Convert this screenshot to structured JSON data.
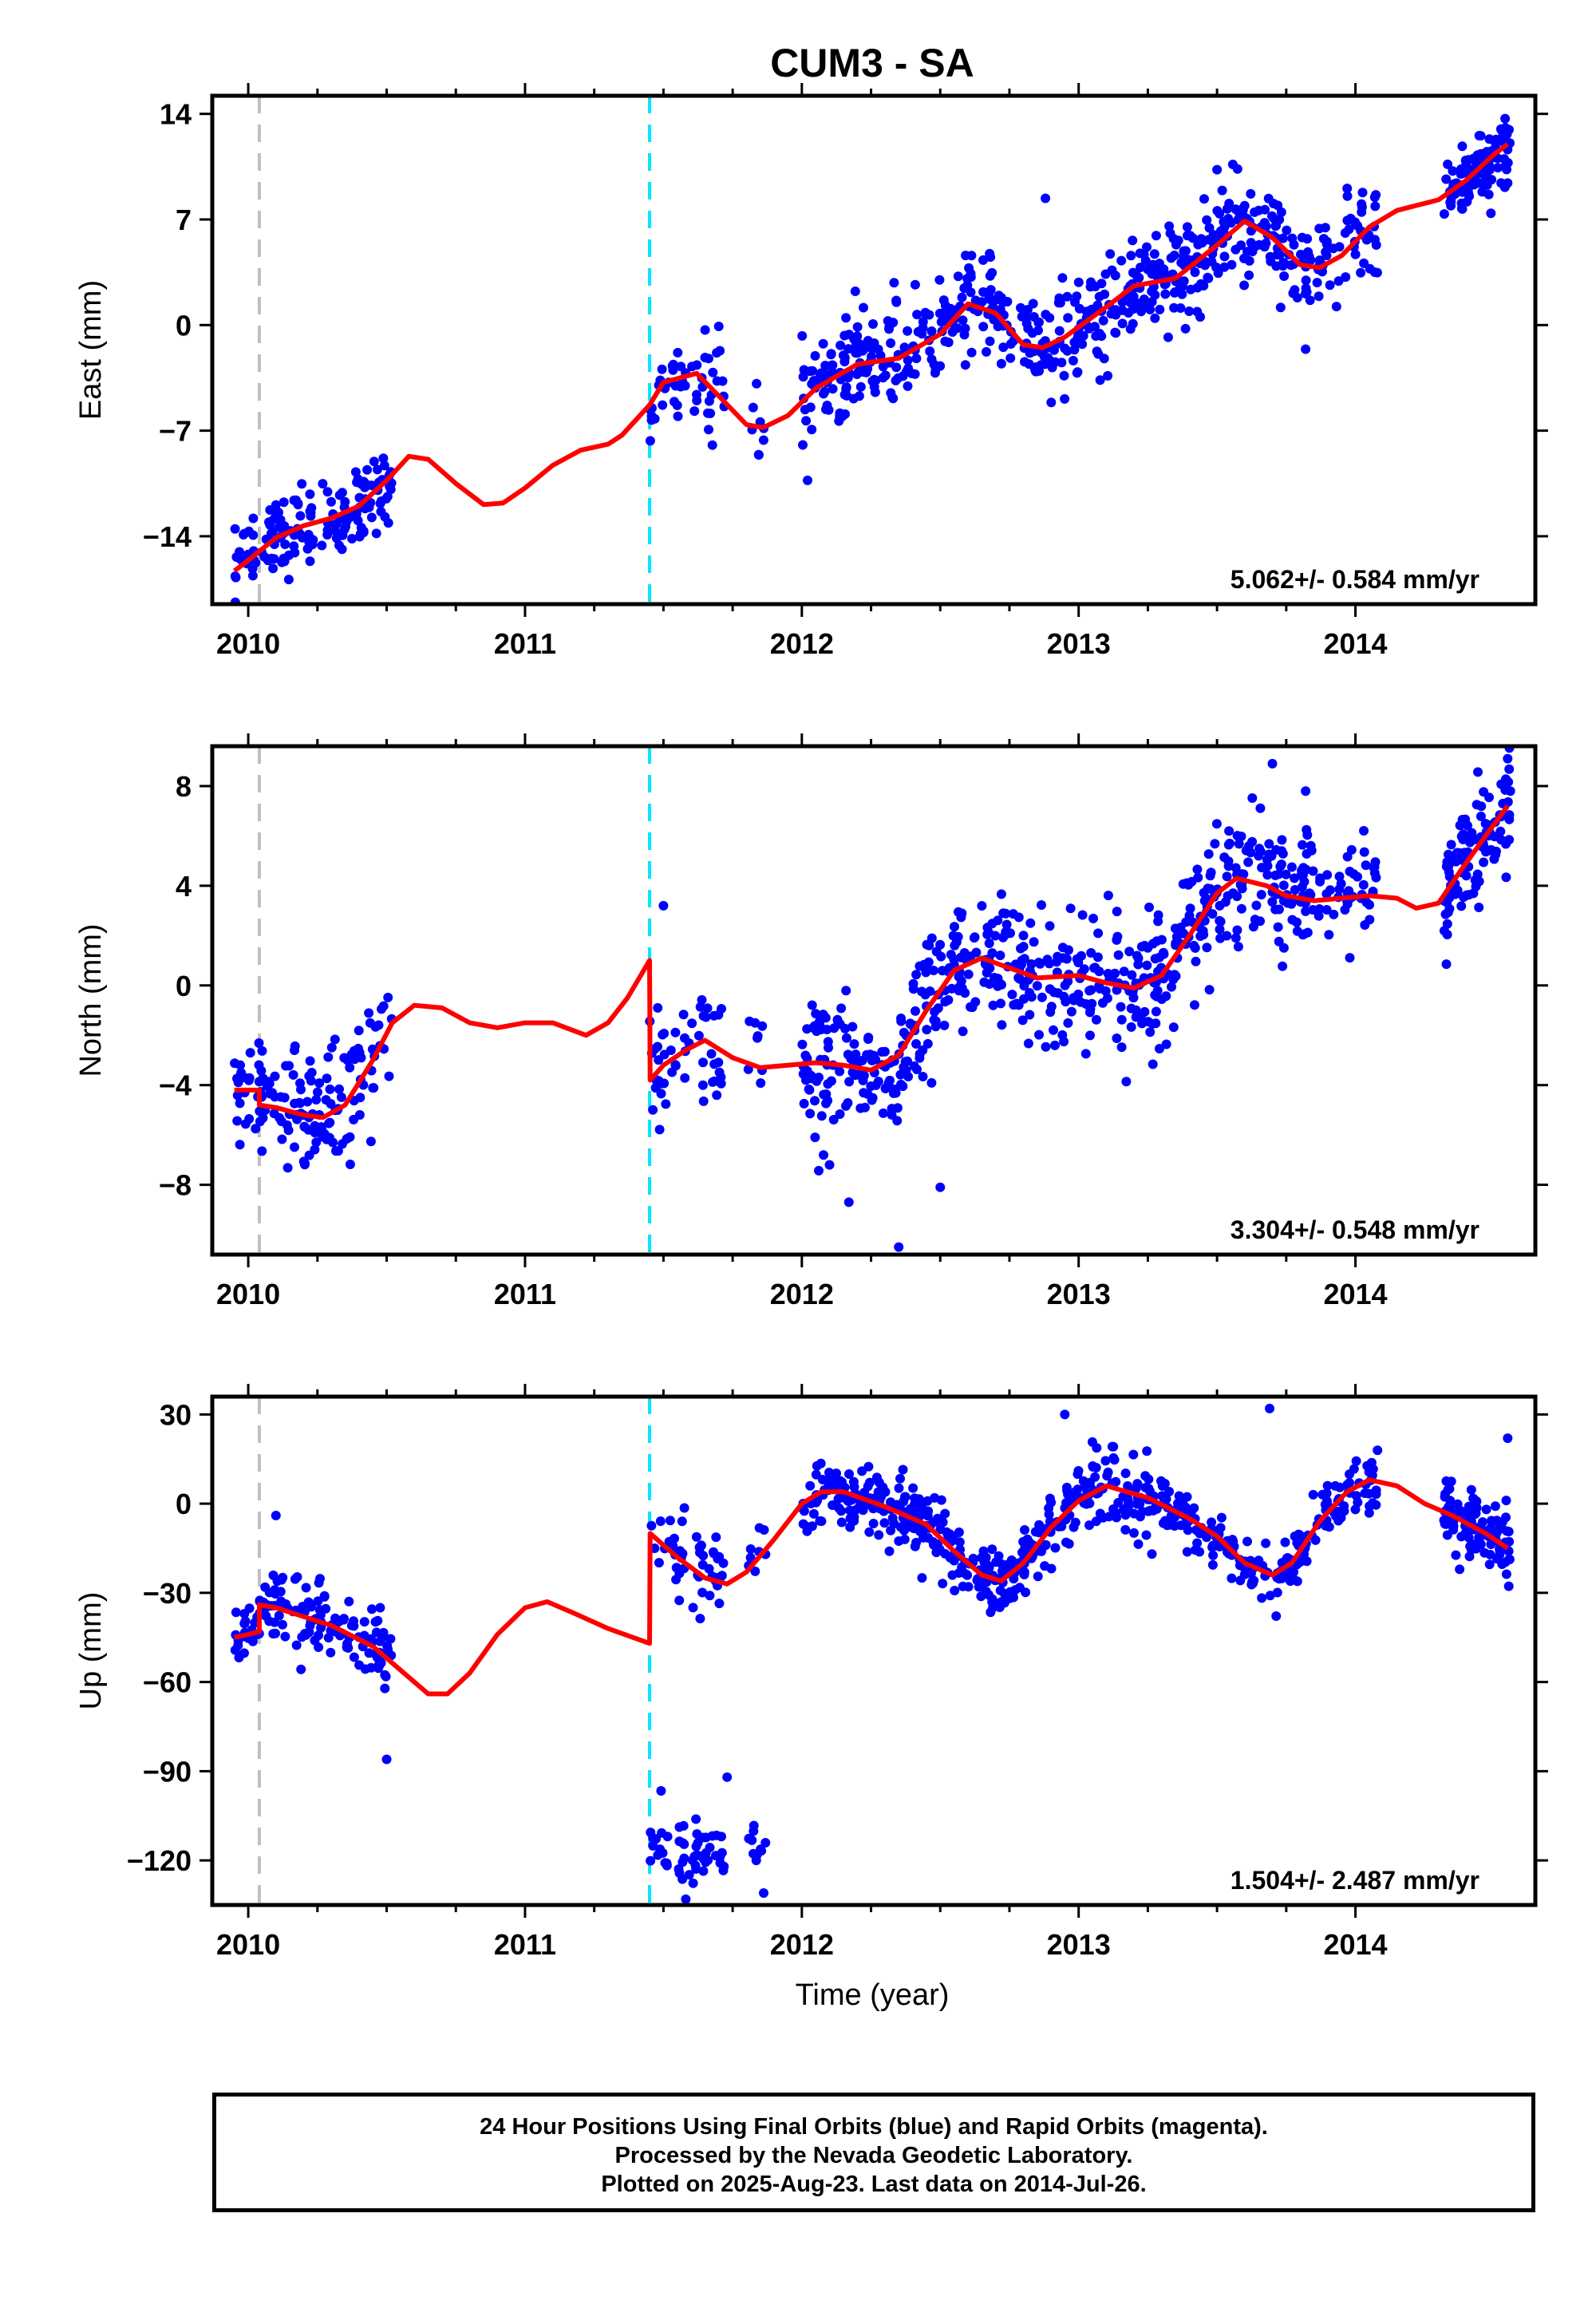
{
  "title": "CUM3 - SA",
  "xlabel": "Time (year)",
  "footer": {
    "line1": "24 Hour Positions Using Final Orbits (blue) and Rapid Orbits (magenta).",
    "line2": "Processed by the Nevada Geodetic Laboratory.",
    "line3": "Plotted on 2025-Aug-23. Last data on 2014-Jul-26."
  },
  "colors": {
    "points": "#0000ff",
    "fit": "#ff0000",
    "event1": "#c0c0c0",
    "event2": "#00e5ff"
  },
  "chart_data": [
    {
      "type": "scatter",
      "ylabel": "East (mm)",
      "xlim": [
        2009.87,
        2014.65
      ],
      "ylim": [
        -18.5,
        15.2
      ],
      "xticks": [
        2010,
        2011,
        2012,
        2013,
        2014
      ],
      "yticks": [
        14,
        7,
        0,
        -7,
        -14
      ],
      "rate": "5.062+/- 0.584 mm/yr",
      "events": [
        2010.04,
        2011.45
      ],
      "fit": [
        [
          2009.95,
          -16.3
        ],
        [
          2010.0,
          -15.6
        ],
        [
          2010.1,
          -14.1
        ],
        [
          2010.2,
          -13.3
        ],
        [
          2010.3,
          -12.8
        ],
        [
          2010.4,
          -12.0
        ],
        [
          2010.5,
          -10.3
        ],
        [
          2010.58,
          -8.7
        ],
        [
          2010.65,
          -8.9
        ],
        [
          2010.75,
          -10.5
        ],
        [
          2010.85,
          -11.9
        ],
        [
          2010.92,
          -11.8
        ],
        [
          2011.0,
          -10.8
        ],
        [
          2011.1,
          -9.3
        ],
        [
          2011.2,
          -8.3
        ],
        [
          2011.3,
          -7.9
        ],
        [
          2011.35,
          -7.3
        ],
        [
          2011.45,
          -5.3
        ],
        [
          2011.5,
          -3.8
        ],
        [
          2011.62,
          -3.2
        ],
        [
          2011.7,
          -4.7
        ],
        [
          2011.8,
          -6.6
        ],
        [
          2011.86,
          -6.8
        ],
        [
          2011.95,
          -6.0
        ],
        [
          2012.05,
          -4.2
        ],
        [
          2012.2,
          -2.6
        ],
        [
          2012.35,
          -2.2
        ],
        [
          2012.5,
          -0.6
        ],
        [
          2012.6,
          1.4
        ],
        [
          2012.7,
          0.8
        ],
        [
          2012.8,
          -1.3
        ],
        [
          2012.87,
          -1.5
        ],
        [
          2012.95,
          -0.8
        ],
        [
          2013.1,
          1.2
        ],
        [
          2013.2,
          2.6
        ],
        [
          2013.35,
          3.1
        ],
        [
          2013.5,
          5.3
        ],
        [
          2013.6,
          6.9
        ],
        [
          2013.7,
          5.8
        ],
        [
          2013.8,
          4.0
        ],
        [
          2013.87,
          3.8
        ],
        [
          2013.95,
          4.6
        ],
        [
          2014.05,
          6.5
        ],
        [
          2014.15,
          7.6
        ],
        [
          2014.3,
          8.3
        ],
        [
          2014.4,
          9.6
        ],
        [
          2014.5,
          11.3
        ],
        [
          2014.55,
          12.0
        ]
      ],
      "clusters": [
        {
          "start": 2009.95,
          "end": 2010.52,
          "n": 150,
          "spread": 1.3
        },
        {
          "start": 2011.45,
          "end": 2011.72,
          "n": 50,
          "spread": 1.6
        },
        {
          "start": 2011.8,
          "end": 2011.87,
          "n": 8,
          "spread": 1.5
        },
        {
          "start": 2012.0,
          "end": 2013.83,
          "n": 560,
          "spread": 1.6
        },
        {
          "start": 2013.8,
          "end": 2014.08,
          "n": 60,
          "spread": 1.6
        },
        {
          "start": 2014.32,
          "end": 2014.56,
          "n": 110,
          "spread": 1.3
        }
      ],
      "outliers": [
        [
          2012.88,
          8.4
        ],
        [
          2013.5,
          10.3
        ],
        [
          2013.82,
          -1.6
        ],
        [
          2014.07,
          3.5
        ]
      ]
    },
    {
      "type": "scatter",
      "ylabel": "North (mm)",
      "xlim": [
        2009.87,
        2014.65
      ],
      "ylim": [
        -10.8,
        9.6
      ],
      "xticks": [
        2010,
        2011,
        2012,
        2013,
        2014
      ],
      "yticks": [
        8,
        4,
        0,
        -4,
        -8
      ],
      "rate": "3.304+/- 0.548 mm/yr",
      "events": [
        2010.04,
        2011.45
      ],
      "fit": [
        [
          2009.95,
          -4.2
        ],
        [
          2010.04,
          -4.2
        ],
        [
          2010.04,
          -4.8
        ],
        [
          2010.1,
          -4.9
        ],
        [
          2010.2,
          -5.2
        ],
        [
          2010.27,
          -5.3
        ],
        [
          2010.35,
          -4.8
        ],
        [
          2010.45,
          -3.0
        ],
        [
          2010.52,
          -1.5
        ],
        [
          2010.6,
          -0.8
        ],
        [
          2010.7,
          -0.9
        ],
        [
          2010.8,
          -1.5
        ],
        [
          2010.9,
          -1.7
        ],
        [
          2011.0,
          -1.5
        ],
        [
          2011.1,
          -1.5
        ],
        [
          2011.22,
          -2.0
        ],
        [
          2011.3,
          -1.5
        ],
        [
          2011.37,
          -0.5
        ],
        [
          2011.45,
          1.0
        ],
        [
          2011.452,
          -3.8
        ],
        [
          2011.5,
          -3.2
        ],
        [
          2011.58,
          -2.6
        ],
        [
          2011.65,
          -2.2
        ],
        [
          2011.75,
          -2.9
        ],
        [
          2011.85,
          -3.3
        ],
        [
          2011.95,
          -3.2
        ],
        [
          2012.05,
          -3.1
        ],
        [
          2012.15,
          -3.2
        ],
        [
          2012.25,
          -3.4
        ],
        [
          2012.35,
          -2.8
        ],
        [
          2012.45,
          -1.0
        ],
        [
          2012.55,
          0.6
        ],
        [
          2012.65,
          1.1
        ],
        [
          2012.75,
          0.7
        ],
        [
          2012.85,
          0.3
        ],
        [
          2013.0,
          0.4
        ],
        [
          2013.1,
          0.1
        ],
        [
          2013.2,
          -0.1
        ],
        [
          2013.3,
          0.4
        ],
        [
          2013.4,
          2.0
        ],
        [
          2013.5,
          3.7
        ],
        [
          2013.57,
          4.3
        ],
        [
          2013.68,
          4.0
        ],
        [
          2013.75,
          3.6
        ],
        [
          2013.85,
          3.4
        ],
        [
          2013.95,
          3.5
        ],
        [
          2014.05,
          3.6
        ],
        [
          2014.15,
          3.5
        ],
        [
          2014.22,
          3.1
        ],
        [
          2014.3,
          3.3
        ],
        [
          2014.38,
          4.6
        ],
        [
          2014.47,
          6.0
        ],
        [
          2014.55,
          7.2
        ]
      ],
      "clusters": [
        {
          "start": 2009.95,
          "end": 2010.52,
          "n": 150,
          "spread": 1.2
        },
        {
          "start": 2011.45,
          "end": 2011.72,
          "n": 50,
          "spread": 1.2
        },
        {
          "start": 2011.8,
          "end": 2011.87,
          "n": 8,
          "spread": 1.2
        },
        {
          "start": 2012.0,
          "end": 2013.83,
          "n": 560,
          "spread": 1.3
        },
        {
          "start": 2013.8,
          "end": 2014.08,
          "n": 60,
          "spread": 1.2
        },
        {
          "start": 2014.32,
          "end": 2014.56,
          "n": 110,
          "spread": 1.2
        }
      ],
      "outliers": [
        [
          2011.5,
          3.2
        ],
        [
          2012.35,
          -10.5
        ],
        [
          2012.5,
          -8.1
        ],
        [
          2012.17,
          -8.7
        ],
        [
          2013.7,
          8.9
        ],
        [
          2013.82,
          7.8
        ],
        [
          2014.55,
          9.1
        ],
        [
          2012.1,
          -7.2
        ]
      ]
    },
    {
      "type": "scatter",
      "ylabel": "Up (mm)",
      "xlim": [
        2009.87,
        2014.65
      ],
      "ylim": [
        -135,
        36
      ],
      "xticks": [
        2010,
        2011,
        2012,
        2013,
        2014
      ],
      "yticks": [
        30,
        0,
        -30,
        -60,
        -90,
        -120
      ],
      "rate": "1.504+/- 2.487 mm/yr",
      "events": [
        2010.04,
        2011.45
      ],
      "fit": [
        [
          2009.95,
          -45
        ],
        [
          2010.0,
          -44
        ],
        [
          2010.04,
          -43
        ],
        [
          2010.04,
          -34
        ],
        [
          2010.1,
          -35
        ],
        [
          2010.2,
          -38
        ],
        [
          2010.3,
          -41
        ],
        [
          2010.45,
          -48
        ],
        [
          2010.55,
          -56
        ],
        [
          2010.65,
          -64
        ],
        [
          2010.72,
          -64
        ],
        [
          2010.8,
          -57
        ],
        [
          2010.9,
          -44
        ],
        [
          2011.0,
          -35
        ],
        [
          2011.08,
          -33
        ],
        [
          2011.18,
          -37
        ],
        [
          2011.3,
          -42
        ],
        [
          2011.45,
          -47
        ],
        [
          2011.452,
          -10
        ],
        [
          2011.55,
          -18
        ],
        [
          2011.65,
          -25
        ],
        [
          2011.73,
          -27
        ],
        [
          2011.8,
          -23
        ],
        [
          2011.9,
          -12
        ],
        [
          2012.0,
          0
        ],
        [
          2012.07,
          4
        ],
        [
          2012.15,
          4
        ],
        [
          2012.3,
          -1
        ],
        [
          2012.45,
          -7
        ],
        [
          2012.55,
          -16
        ],
        [
          2012.65,
          -24
        ],
        [
          2012.72,
          -26
        ],
        [
          2012.8,
          -20
        ],
        [
          2012.9,
          -8
        ],
        [
          2013.0,
          1
        ],
        [
          2013.1,
          6
        ],
        [
          2013.25,
          2
        ],
        [
          2013.4,
          -5
        ],
        [
          2013.5,
          -11
        ],
        [
          2013.6,
          -20
        ],
        [
          2013.7,
          -24
        ],
        [
          2013.77,
          -20
        ],
        [
          2013.87,
          -6
        ],
        [
          2013.97,
          4
        ],
        [
          2014.05,
          8
        ],
        [
          2014.15,
          6
        ],
        [
          2014.25,
          0
        ],
        [
          2014.35,
          -4
        ],
        [
          2014.47,
          -10
        ],
        [
          2014.55,
          -15
        ]
      ],
      "clusters": [
        {
          "start": 2009.95,
          "end": 2010.52,
          "n": 150,
          "spread": 6
        },
        {
          "start": 2011.45,
          "end": 2011.72,
          "n": 50,
          "spread": 7
        },
        {
          "start": 2011.8,
          "end": 2011.87,
          "n": 8,
          "spread": 6
        },
        {
          "start": 2012.0,
          "end": 2013.83,
          "n": 560,
          "spread": 5.5
        },
        {
          "start": 2013.8,
          "end": 2014.08,
          "n": 60,
          "spread": 5
        },
        {
          "start": 2014.32,
          "end": 2014.56,
          "n": 110,
          "spread": 6
        }
      ],
      "outliers": [
        [
          2010.1,
          -4
        ],
        [
          2010.5,
          -86
        ],
        [
          2011.73,
          -92
        ],
        [
          2013.69,
          32
        ],
        [
          2012.95,
          30
        ],
        [
          2014.55,
          22
        ]
      ]
    }
  ]
}
